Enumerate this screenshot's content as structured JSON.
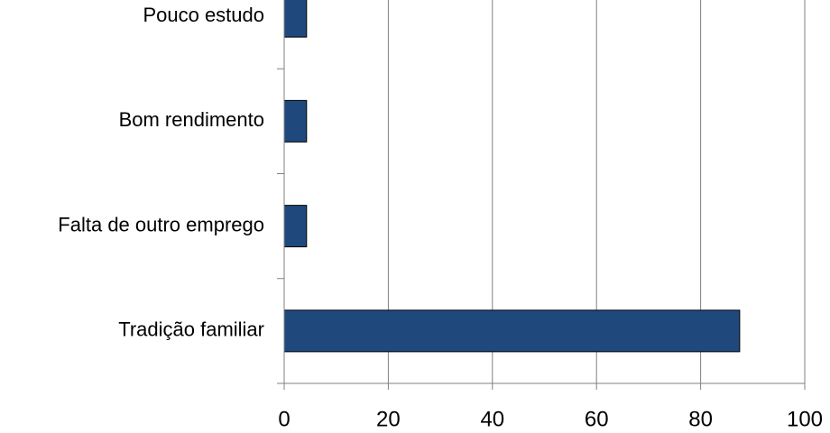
{
  "chart_data": {
    "type": "bar",
    "orientation": "horizontal",
    "categories": [
      "Pouco estudo",
      "Bom rendimento",
      "Falta de outro emprego",
      "Tradição familiar"
    ],
    "values": [
      4.3,
      4.3,
      4.3,
      87.5
    ],
    "xlim": [
      0,
      100
    ],
    "x_ticks": [
      "0",
      "20",
      "40",
      "60",
      "80",
      "100"
    ],
    "grid": "vertical",
    "legend": "none",
    "title": "",
    "xlabel": "",
    "ylabel": "",
    "colors": {
      "bar": "#1f497d",
      "bar_stroke": "#000000",
      "grid": "#808080",
      "axis": "#808080",
      "text": "#000000"
    }
  }
}
